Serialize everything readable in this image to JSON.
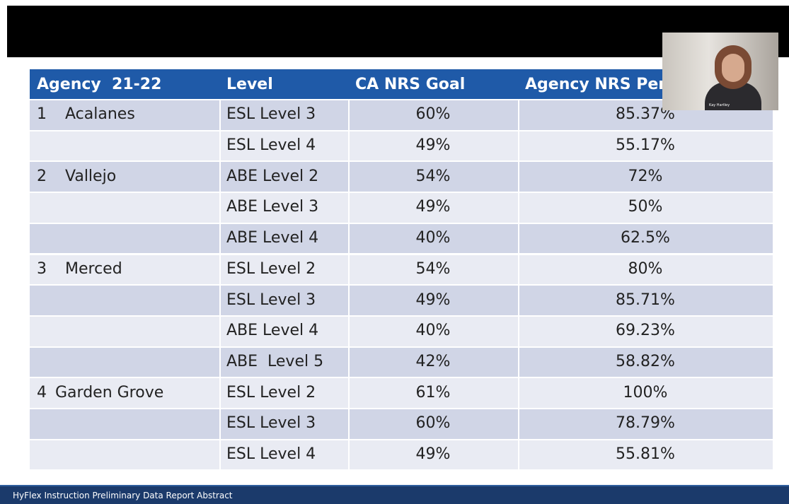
{
  "table": {
    "header": [
      "Agency  21-22",
      "Level",
      "CA NRS Goal",
      "Agency NRS Performance"
    ],
    "rows": [
      {
        "no": "1",
        "agency": "Acalanes",
        "level": "ESL Level 3",
        "goal": "60%",
        "performance": "85.37%"
      },
      {
        "level": "ESL Level 4",
        "goal": "49%",
        "performance": "55.17%"
      },
      {
        "no": "2",
        "agency": "Vallejo",
        "level": "ABE Level 2",
        "goal": "54%",
        "performance": "72%"
      },
      {
        "level": "ABE Level 3",
        "goal": "49%",
        "performance": "50%"
      },
      {
        "level": "ABE Level 4",
        "goal": "40%",
        "performance": "62.5%"
      },
      {
        "no": "3",
        "agency": "Merced",
        "level": "ESL Level 2",
        "goal": "54%",
        "performance": "80%"
      },
      {
        "level": "ESL Level 3",
        "goal": "49%",
        "performance": "85.71%"
      },
      {
        "level": "ABE Level 4",
        "goal": "40%",
        "performance": "69.23%"
      },
      {
        "level": "ABE  Level 5",
        "goal": "42%",
        "performance": "58.82%"
      },
      {
        "no": "4",
        "agency": "Garden Grove",
        "level": "ESL Level 2",
        "goal": "61%",
        "performance": "100%"
      },
      {
        "level": "ESL Level 3",
        "goal": "60%",
        "performance": "78.79%"
      },
      {
        "level": "ESL Level 4",
        "goal": "49%",
        "performance": "55.81%"
      }
    ]
  },
  "video": {
    "name": "Kay Hartley"
  },
  "footer": {
    "text": "HyFlex Instruction Preliminary Data Report Abstract"
  }
}
